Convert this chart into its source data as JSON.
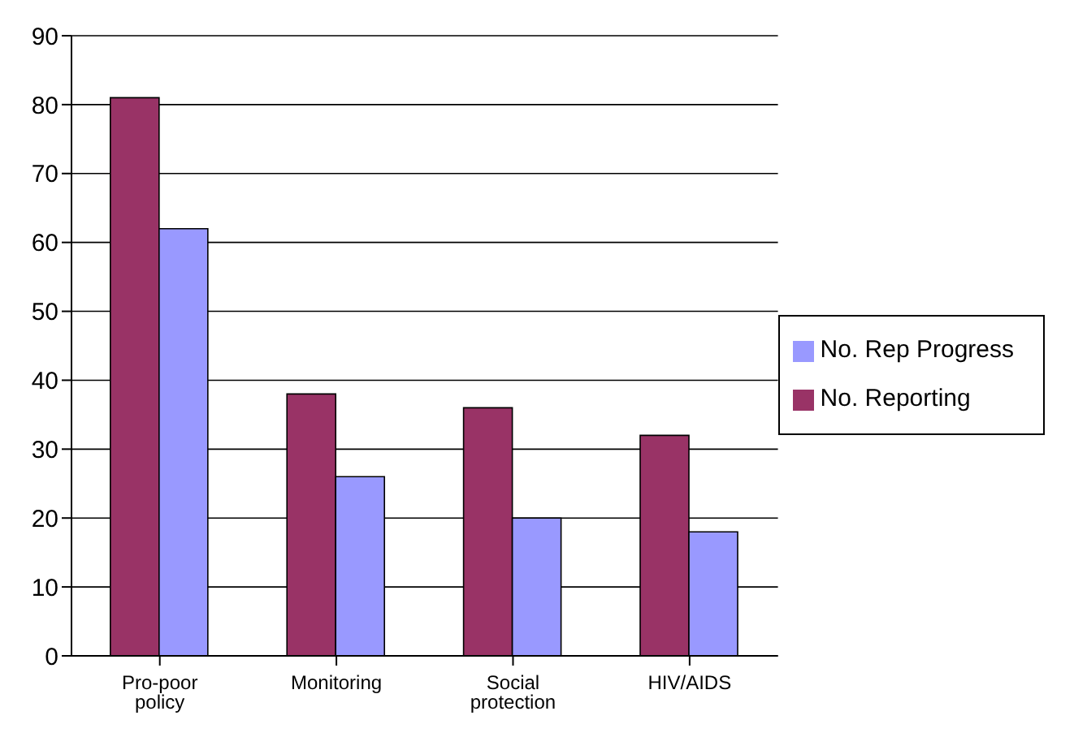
{
  "chart_data": {
    "type": "bar",
    "categories": [
      "Pro-poor policy",
      "Monitoring",
      "Social protection",
      "HIV/AIDS"
    ],
    "series": [
      {
        "name": "No. Reporting",
        "color": "#993366",
        "values": [
          81,
          38,
          36,
          32
        ]
      },
      {
        "name": "No. Rep Progress",
        "color": "#9999ff",
        "values": [
          62,
          26,
          20,
          18
        ]
      }
    ],
    "ylim": [
      0,
      90
    ],
    "yticks": [
      0,
      10,
      20,
      30,
      40,
      50,
      60,
      70,
      80,
      90
    ],
    "grid": "y",
    "legend": "right"
  }
}
